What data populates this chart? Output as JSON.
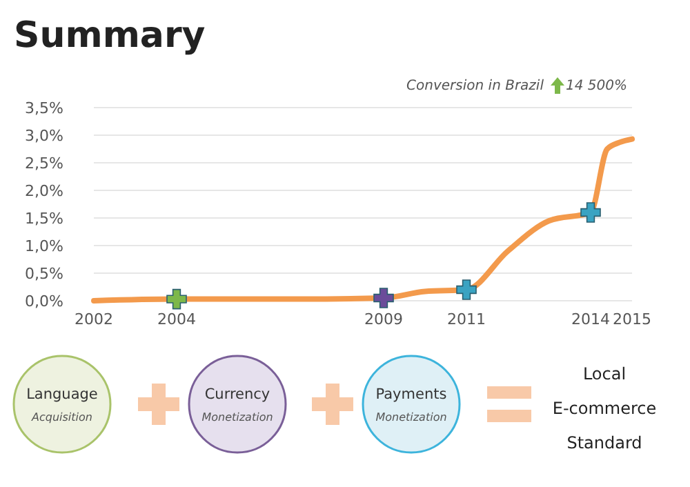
{
  "chart_data": {
    "type": "line",
    "title": "Summary",
    "annotations": [
      "Conversion in Brazil",
      "14 500%",
      "Language",
      "Acquisition",
      "Currency",
      "Monetization",
      "Payments",
      "Monetization",
      "Local",
      "E-commerce",
      "Standard"
    ],
    "xlim": [
      2002,
      2015
    ],
    "xticks": [
      2002,
      2004,
      2009,
      2011,
      2014,
      2015
    ],
    "ylim": [
      0,
      3.5
    ],
    "yticks": [
      {
        "value": 0,
        "label": "0,0%"
      },
      {
        "value": 0.5,
        "label": "0,5%"
      },
      {
        "value": 1,
        "label": "1,0%"
      },
      {
        "value": 1.5,
        "label": "1,5%"
      },
      {
        "value": 2,
        "label": "2,0%"
      },
      {
        "value": 2.5,
        "label": "2,5%"
      },
      {
        "value": 3,
        "label": "3,0%"
      },
      {
        "value": 3.5,
        "label": "3,5%"
      }
    ],
    "grid": "y",
    "series": [
      {
        "color": "#f39a4c",
        "x": [
          2002,
          2004,
          2007,
          2009,
          2010,
          2011,
          2012,
          2013,
          2014,
          2014.4,
          2014.7,
          2015
        ],
        "values": [
          0,
          0.03,
          0.03,
          0.05,
          0.17,
          0.2,
          0.9,
          1.45,
          1.6,
          2.75,
          2.87,
          2.93
        ]
      },
      {
        "type": "scatter",
        "marker": "cross",
        "colors": [
          "#7db84a",
          "#6b4c9a",
          "#3aa3c2",
          "#3aa3c2"
        ],
        "x": [
          2004,
          2009,
          2011,
          2014
        ],
        "values": [
          0.03,
          0.05,
          0.2,
          1.6
        ]
      }
    ]
  }
}
